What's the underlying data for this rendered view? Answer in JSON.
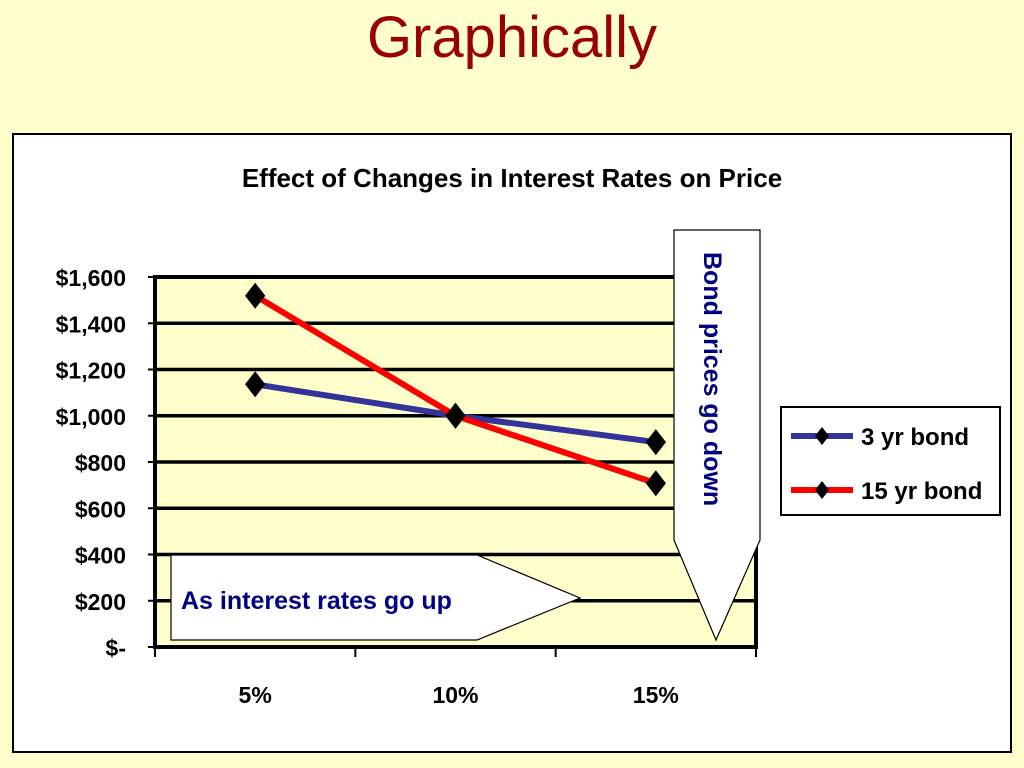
{
  "slide": {
    "title": "Graphically",
    "background": "#FFFFCC",
    "title_color": "#990000"
  },
  "chart_data": {
    "type": "line",
    "title": "Effect of Changes in Interest Rates on Price",
    "categories": [
      "5%",
      "10%",
      "15%"
    ],
    "series": [
      {
        "name": "3 yr bond",
        "color": "#333399",
        "values": [
          1136,
          1000,
          886
        ]
      },
      {
        "name": "15 yr bond",
        "color": "#FF0000",
        "values": [
          1519,
          1000,
          708
        ]
      }
    ],
    "ylim": [
      0,
      1600
    ],
    "ytick_values": [
      0,
      200,
      400,
      600,
      800,
      1000,
      1200,
      1400,
      1600
    ],
    "ytick_labels": [
      "$-",
      "$200",
      "$400",
      "$600",
      "$800",
      "$1,000",
      "$1,200",
      "$1,400",
      "$1,600"
    ],
    "marker": "diamond",
    "grid": true,
    "plot_background": "#FFFFCC",
    "legend_position": "right",
    "annotations": {
      "horizontal_arrow": "As interest rates go up",
      "vertical_arrow": "Bond prices go down",
      "text_color": "#000080"
    }
  }
}
